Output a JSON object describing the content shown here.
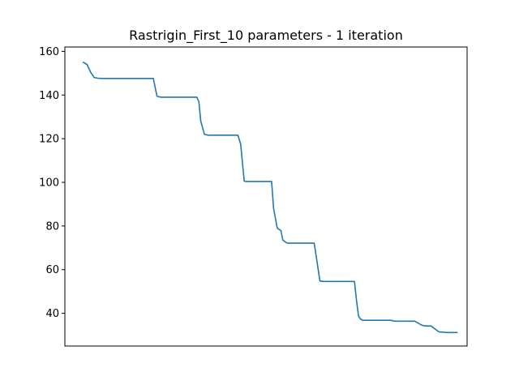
{
  "chart_data": {
    "type": "line",
    "title": "Rastrigin_First_10 parameters - 1 iteration",
    "xlabel": "",
    "ylabel": "",
    "xlim": [
      0,
      100
    ],
    "ylim": [
      25,
      162
    ],
    "x_ticks_visible": false,
    "grid": false,
    "y_ticks": [
      40,
      60,
      80,
      100,
      120,
      140,
      160
    ],
    "series": [
      {
        "color": "#1f77b4",
        "x": [
          4.6,
          5.5,
          6.4,
          7.3,
          8.2,
          9.1,
          10,
          11,
          12,
          14,
          16,
          18,
          20,
          22,
          22.5,
          22.9,
          23.4,
          24,
          26,
          28,
          30,
          32,
          32.8,
          33.3,
          33.8,
          34.7,
          35.6,
          37,
          39,
          41,
          43,
          43.7,
          44.1,
          44.6,
          45,
          47,
          49,
          51.4,
          51.9,
          52.8,
          53.7,
          54.2,
          55.1,
          55.6,
          56.5,
          58,
          60,
          62,
          62.5,
          63.4,
          64.3,
          66,
          68,
          70,
          72,
          72.5,
          73,
          73.4,
          74,
          75,
          77,
          79,
          81,
          82,
          83,
          85,
          87,
          88.3,
          89,
          89.7,
          90.3,
          91,
          93,
          95,
          97.5
        ],
        "y": [
          155.0,
          154.0,
          150.5,
          148.0,
          147.7,
          147.6,
          147.6,
          147.6,
          147.6,
          147.6,
          147.6,
          147.6,
          147.6,
          147.6,
          143.0,
          139.5,
          139.2,
          139.0,
          139.0,
          139.0,
          139.0,
          139.0,
          139.0,
          137.0,
          128.0,
          122.0,
          121.6,
          121.6,
          121.6,
          121.6,
          121.6,
          117.5,
          110.0,
          100.5,
          100.4,
          100.4,
          100.4,
          100.4,
          88.0,
          79.0,
          77.9,
          73.5,
          72.3,
          72.1,
          72.1,
          72.1,
          72.1,
          72.1,
          66.0,
          54.8,
          54.6,
          54.6,
          54.6,
          54.6,
          54.6,
          46.0,
          38.8,
          37.5,
          36.8,
          36.8,
          36.8,
          36.8,
          36.8,
          36.4,
          36.4,
          36.4,
          36.4,
          35.0,
          34.4,
          34.2,
          34.2,
          34.2,
          31.5,
          31.2,
          31.2
        ]
      }
    ]
  }
}
